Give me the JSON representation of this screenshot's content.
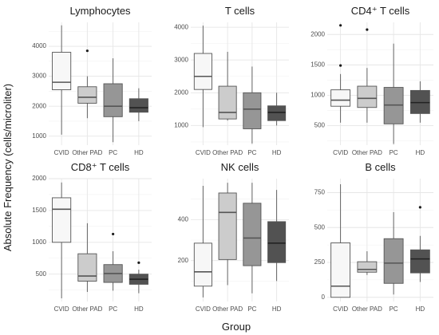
{
  "figure": {
    "ylabel": "Absolute Frequency (cells/microliter)",
    "xlabel": "Group"
  },
  "colors": {
    "CVID": "#f7f7f7",
    "Other PAD": "#cccccc",
    "PC": "#969696",
    "HD": "#525252",
    "box_stroke": "#555555",
    "outlier": "#1a1a1a"
  },
  "chart_data": [
    {
      "type": "box",
      "title": "Lymphocytes",
      "ylim": [
        700,
        4800
      ],
      "yticks": [
        1000,
        2000,
        3000,
        4000
      ],
      "categories": [
        "CVID",
        "Other PAD",
        "PC",
        "HD"
      ],
      "boxes": [
        {
          "group": "CVID",
          "min": 1050,
          "q1": 2550,
          "median": 2800,
          "q3": 3800,
          "max": 4700,
          "outliers": []
        },
        {
          "group": "Other PAD",
          "min": 1600,
          "q1": 2100,
          "median": 2300,
          "q3": 2650,
          "max": 3000,
          "outliers": [
            3850
          ]
        },
        {
          "group": "PC",
          "min": 800,
          "q1": 1650,
          "median": 2000,
          "q3": 2750,
          "max": 3600,
          "outliers": []
        },
        {
          "group": "HD",
          "min": 1500,
          "q1": 1800,
          "median": 1950,
          "q3": 2250,
          "max": 2600,
          "outliers": []
        }
      ]
    },
    {
      "type": "box",
      "title": "T cells",
      "ylim": [
        400,
        4150
      ],
      "yticks": [
        1000,
        2000,
        3000,
        4000
      ],
      "categories": [
        "CVID",
        "Other PAD",
        "PC",
        "HD"
      ],
      "boxes": [
        {
          "group": "CVID",
          "min": 950,
          "q1": 2100,
          "median": 2500,
          "q3": 3200,
          "max": 4050,
          "outliers": []
        },
        {
          "group": "Other PAD",
          "min": 1150,
          "q1": 1200,
          "median": 1400,
          "q3": 2200,
          "max": 3250,
          "outliers": []
        },
        {
          "group": "PC",
          "min": 450,
          "q1": 900,
          "median": 1500,
          "q3": 2000,
          "max": 2800,
          "outliers": []
        },
        {
          "group": "HD",
          "min": 1000,
          "q1": 1150,
          "median": 1400,
          "q3": 1600,
          "max": 2000,
          "outliers": []
        }
      ]
    },
    {
      "type": "box",
      "title": "CD4⁺ T cells",
      "ylim": [
        180,
        2200
      ],
      "yticks": [
        500,
        1000,
        1500,
        2000
      ],
      "categories": [
        "CVID",
        "Other PAD",
        "PC",
        "HD"
      ],
      "boxes": [
        {
          "group": "CVID",
          "min": 550,
          "q1": 820,
          "median": 920,
          "q3": 1090,
          "max": 1350,
          "outliers": [
            1490,
            2150
          ]
        },
        {
          "group": "Other PAD",
          "min": 550,
          "q1": 800,
          "median": 950,
          "q3": 1150,
          "max": 1450,
          "outliers": [
            2080
          ]
        },
        {
          "group": "PC",
          "min": 200,
          "q1": 530,
          "median": 840,
          "q3": 1130,
          "max": 1850,
          "outliers": []
        },
        {
          "group": "HD",
          "min": 550,
          "q1": 700,
          "median": 880,
          "q3": 1080,
          "max": 1230,
          "outliers": []
        }
      ]
    },
    {
      "type": "box",
      "title": "CD8⁺ T cells",
      "ylim": [
        70,
        2000
      ],
      "yticks": [
        500,
        1000,
        1500,
        2000
      ],
      "categories": [
        "CVID",
        "Other PAD",
        "PC",
        "HD"
      ],
      "boxes": [
        {
          "group": "CVID",
          "min": 120,
          "q1": 1000,
          "median": 1520,
          "q3": 1700,
          "max": 1940,
          "outliers": []
        },
        {
          "group": "Other PAD",
          "min": 220,
          "q1": 390,
          "median": 470,
          "q3": 820,
          "max": 1300,
          "outliers": []
        },
        {
          "group": "PC",
          "min": 240,
          "q1": 370,
          "median": 510,
          "q3": 650,
          "max": 860,
          "outliers": [
            1130
          ]
        },
        {
          "group": "HD",
          "min": 200,
          "q1": 340,
          "median": 420,
          "q3": 500,
          "max": 570,
          "outliers": [
            680
          ]
        }
      ]
    },
    {
      "type": "box",
      "title": "NK cells",
      "ylim": [
        0,
        600
      ],
      "yticks": [
        200,
        400
      ],
      "categories": [
        "CVID",
        "Other PAD",
        "PC",
        "HD"
      ],
      "boxes": [
        {
          "group": "CVID",
          "min": 20,
          "q1": 75,
          "median": 145,
          "q3": 285,
          "max": 565,
          "outliers": []
        },
        {
          "group": "Other PAD",
          "min": 80,
          "q1": 205,
          "median": 435,
          "q3": 530,
          "max": 580,
          "outliers": []
        },
        {
          "group": "PC",
          "min": 40,
          "q1": 175,
          "median": 310,
          "q3": 480,
          "max": 580,
          "outliers": []
        },
        {
          "group": "HD",
          "min": 100,
          "q1": 190,
          "median": 285,
          "q3": 390,
          "max": 545,
          "outliers": []
        }
      ]
    },
    {
      "type": "box",
      "title": "B cells",
      "ylim": [
        -30,
        850
      ],
      "yticks": [
        0,
        250,
        500,
        750
      ],
      "categories": [
        "CVID",
        "Other PAD",
        "PC",
        "HD"
      ],
      "boxes": [
        {
          "group": "CVID",
          "min": 0,
          "q1": 0,
          "median": 80,
          "q3": 390,
          "max": 810,
          "outliers": []
        },
        {
          "group": "Other PAD",
          "min": 160,
          "q1": 180,
          "median": 200,
          "q3": 255,
          "max": 330,
          "outliers": []
        },
        {
          "group": "PC",
          "min": 20,
          "q1": 100,
          "median": 245,
          "q3": 420,
          "max": 610,
          "outliers": []
        },
        {
          "group": "HD",
          "min": 110,
          "q1": 175,
          "median": 275,
          "q3": 340,
          "max": 440,
          "outliers": [
            645
          ]
        }
      ]
    }
  ]
}
